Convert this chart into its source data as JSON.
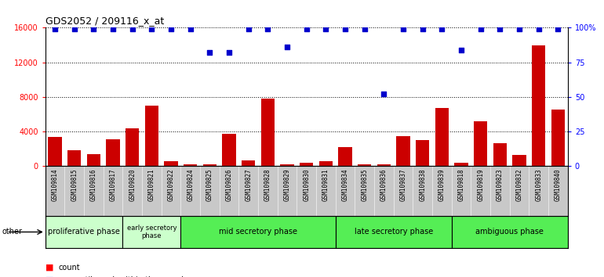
{
  "title": "GDS2052 / 209116_x_at",
  "samples": [
    "GSM109814",
    "GSM109815",
    "GSM109816",
    "GSM109817",
    "GSM109820",
    "GSM109821",
    "GSM109822",
    "GSM109824",
    "GSM109825",
    "GSM109826",
    "GSM109827",
    "GSM109828",
    "GSM109829",
    "GSM109830",
    "GSM109831",
    "GSM109834",
    "GSM109835",
    "GSM109836",
    "GSM109837",
    "GSM109838",
    "GSM109839",
    "GSM109818",
    "GSM109819",
    "GSM109823",
    "GSM109832",
    "GSM109833",
    "GSM109840"
  ],
  "counts": [
    3400,
    1800,
    1400,
    3100,
    4400,
    7000,
    600,
    200,
    200,
    3700,
    700,
    7800,
    200,
    400,
    600,
    2200,
    200,
    200,
    3500,
    3000,
    6700,
    400,
    5200,
    2700,
    1300,
    14000,
    6500
  ],
  "percentiles": [
    99,
    99,
    99,
    99,
    99,
    99,
    99,
    99,
    82,
    82,
    99,
    99,
    86,
    99,
    99,
    99,
    99,
    52,
    99,
    99,
    99,
    84,
    99,
    99,
    99,
    99,
    99
  ],
  "ylim_left": [
    0,
    16000
  ],
  "ylim_right": [
    0,
    100
  ],
  "yticks_left": [
    0,
    4000,
    8000,
    12000,
    16000
  ],
  "yticks_right": [
    0,
    25,
    50,
    75,
    100
  ],
  "ytick_labels_right": [
    "0",
    "25",
    "50",
    "75",
    "100%"
  ],
  "bar_color": "#cc0000",
  "dot_color": "#0000cc",
  "phase_boundaries": [
    {
      "name": "proliferative phase",
      "start": 0,
      "end": 4,
      "color": "#ccffcc"
    },
    {
      "name": "early secretory\nphase",
      "start": 4,
      "end": 7,
      "color": "#ccffcc"
    },
    {
      "name": "mid secretory phase",
      "start": 7,
      "end": 15,
      "color": "#55ee55"
    },
    {
      "name": "late secretory phase",
      "start": 15,
      "end": 21,
      "color": "#55ee55"
    },
    {
      "name": "ambiguous phase",
      "start": 21,
      "end": 27,
      "color": "#55ee55"
    }
  ]
}
